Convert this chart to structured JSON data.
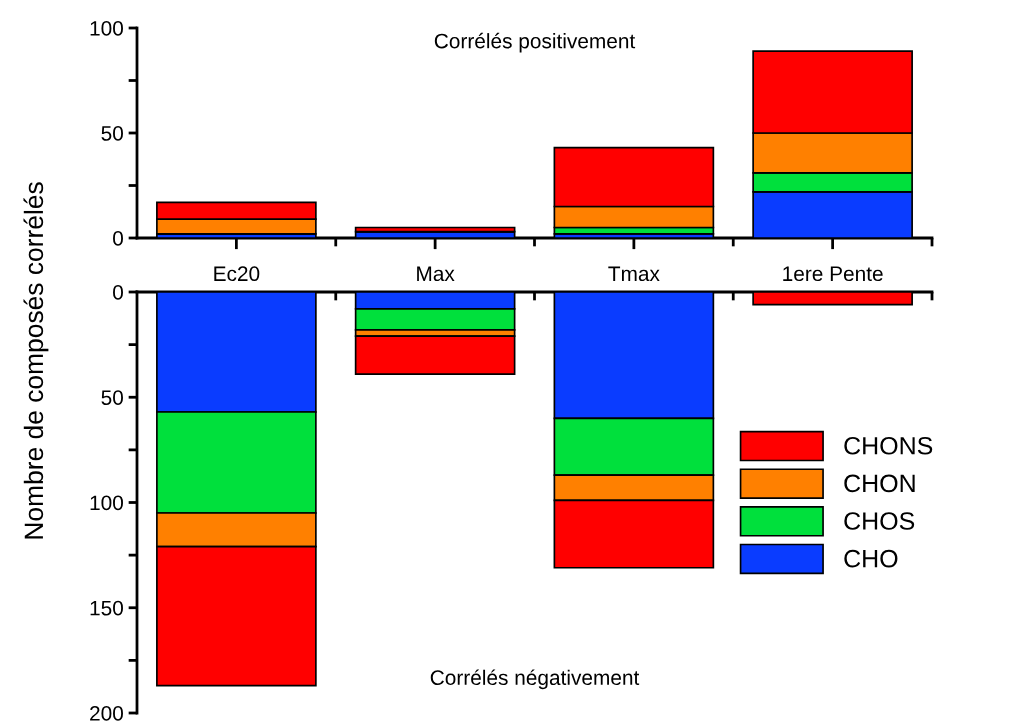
{
  "chart_data": [
    {
      "type": "bar",
      "stacked": true,
      "categories": [
        "Ec20",
        "Max",
        "Tmax",
        "1ere Pente"
      ],
      "ylabel": "Nombre de composés corrélés",
      "annotations": [
        "Corrélés positivement"
      ],
      "ylim": [
        0,
        100
      ],
      "yticks": [
        0,
        {
          "value": 25,
          "label": null
        },
        50,
        {
          "value": 75,
          "label": null
        },
        100
      ],
      "legend": false,
      "series": [
        {
          "color": "#0a3cff",
          "values": [
            2,
            3,
            2,
            22
          ]
        },
        {
          "color": "#00e03c",
          "values": [
            0,
            0,
            3,
            9
          ]
        },
        {
          "color": "#ff8000",
          "values": [
            7,
            0,
            10,
            19
          ]
        },
        {
          "color": "#ff0000",
          "values": [
            8,
            2,
            28,
            39
          ]
        }
      ]
    },
    {
      "type": "bar",
      "stacked": true,
      "categories": [
        null,
        null,
        null,
        null
      ],
      "annotations": [
        "Corrélés négativement"
      ],
      "ylim": [
        200,
        0
      ],
      "yticks": [
        0,
        {
          "value": 25,
          "label": null
        },
        50,
        {
          "value": 75,
          "label": null
        },
        100,
        {
          "value": 125,
          "label": null
        },
        150,
        {
          "value": 175,
          "label": null
        },
        200
      ],
      "legend": "right",
      "series": [
        {
          "name": "CHO",
          "color": "#0a3cff",
          "values": [
            57,
            8,
            60,
            0
          ]
        },
        {
          "name": "CHOS",
          "color": "#00e03c",
          "values": [
            48,
            10,
            27,
            0
          ]
        },
        {
          "name": "CHON",
          "color": "#ff8000",
          "values": [
            16,
            3,
            12,
            0
          ]
        },
        {
          "name": "CHONS",
          "color": "#ff0000",
          "values": [
            66,
            18,
            32,
            6
          ]
        }
      ]
    }
  ]
}
